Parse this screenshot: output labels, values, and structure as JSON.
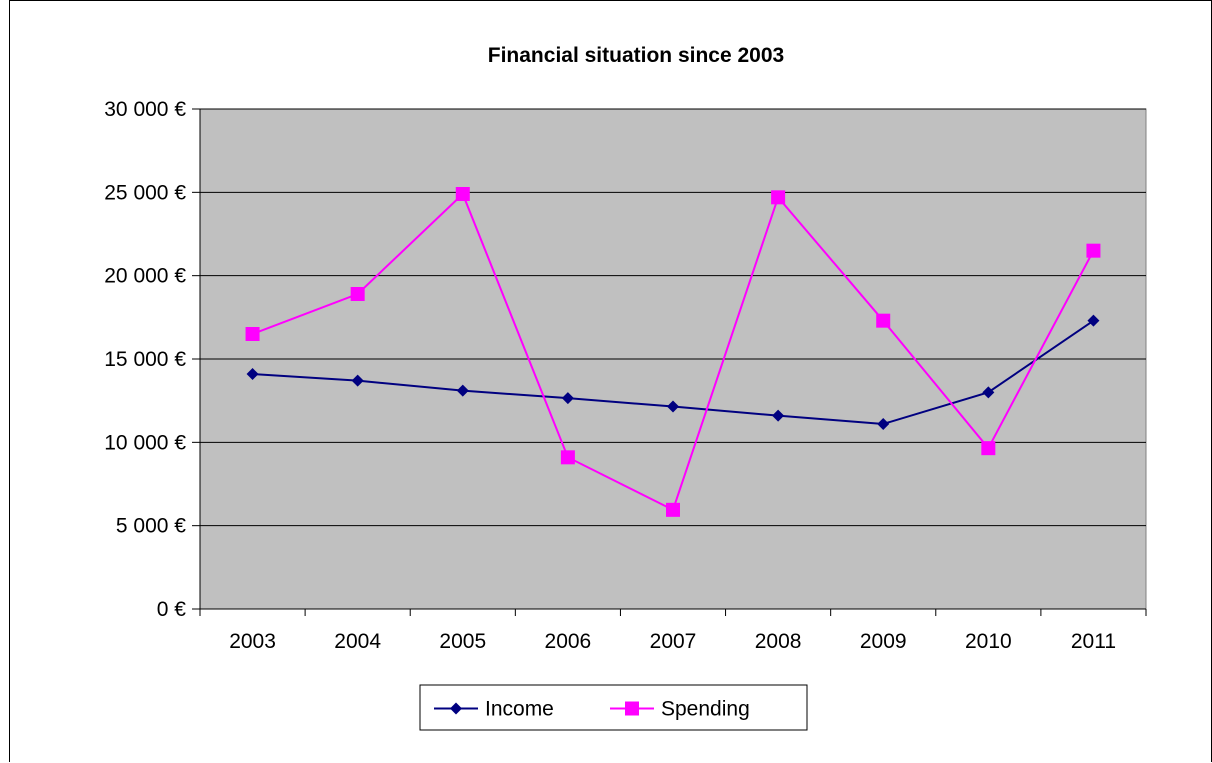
{
  "chart_data": {
    "type": "line",
    "title": "Financial situation since 2003",
    "xlabel": "",
    "ylabel": "",
    "categories": [
      "2003",
      "2004",
      "2005",
      "2006",
      "2007",
      "2008",
      "2009",
      "2010",
      "2011"
    ],
    "series": [
      {
        "name": "Income",
        "color": "#000080",
        "marker": "diamond",
        "values": [
          14100,
          13700,
          13100,
          12650,
          12150,
          11600,
          11100,
          13000,
          17300
        ]
      },
      {
        "name": "Spending",
        "color": "#ff00ff",
        "marker": "square",
        "values": [
          16500,
          18900,
          24900,
          9100,
          5950,
          24700,
          17300,
          9650,
          21500
        ]
      }
    ],
    "ylim": [
      0,
      30000
    ],
    "yticks": [
      0,
      5000,
      10000,
      15000,
      20000,
      25000,
      30000
    ],
    "ytick_labels": [
      "0 €",
      "5 000 €",
      "10 000 €",
      "15 000 €",
      "20 000 €",
      "25 000 €",
      "30 000 €"
    ],
    "grid": true,
    "plot_background": "#c0c0c0",
    "legend_position": "bottom"
  }
}
